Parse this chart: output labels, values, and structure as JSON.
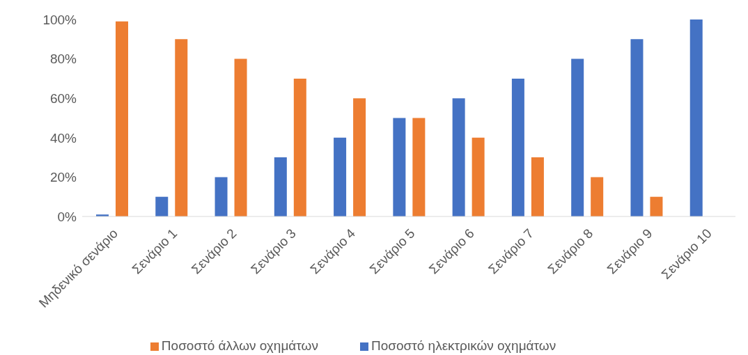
{
  "chart_data": {
    "type": "bar",
    "categories": [
      "Μηδενικό σενάριο",
      "Σενάριο 1",
      "Σενάριο 2",
      "Σενάριο 3",
      "Σενάριο 4",
      "Σενάριο 5",
      "Σενάριο 6",
      "Σενάριο 7",
      "Σενάριο 8",
      "Σενάριο 9",
      "Σενάριο 10"
    ],
    "series": [
      {
        "name": "Ποσοστό ηλεκτρικών οχημάτων",
        "color": "#4472c4",
        "values": [
          1,
          10,
          20,
          30,
          40,
          50,
          60,
          70,
          80,
          90,
          100
        ]
      },
      {
        "name": "Ποσοστό άλλων οχημάτων",
        "color": "#ed7d31",
        "values": [
          99,
          90,
          80,
          70,
          60,
          50,
          40,
          30,
          20,
          10,
          0
        ]
      }
    ],
    "ylim": [
      0,
      100
    ],
    "yticks": [
      {
        "value": 0,
        "label": "0%"
      },
      {
        "value": 20,
        "label": "20%"
      },
      {
        "value": 40,
        "label": "40%"
      },
      {
        "value": 60,
        "label": "60%"
      },
      {
        "value": 80,
        "label": "80%"
      },
      {
        "value": 100,
        "label": "100%"
      }
    ],
    "grid": false,
    "legend": "bottom"
  }
}
